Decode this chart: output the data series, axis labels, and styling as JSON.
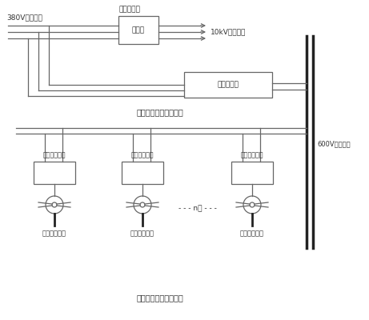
{
  "bg_color": "#ffffff",
  "line_color": "#666666",
  "dark_line": "#222222",
  "text_color": "#333333",
  "title": "风力发电节能减排系统",
  "label_380v": "380V输电线路",
  "label_user_transformer": "用户变压器",
  "label_transformer": "变压器",
  "label_10kv": "10kV输电线路",
  "label_inverter": "并网逆变器",
  "label_dc_group": "小型直流风力发电机群",
  "label_rect1": "三相整流管桥",
  "label_rect2": "三相整流管桥",
  "label_rect3": "三相整流管桥",
  "label_gen1": "风力发电机组",
  "label_gen2": "风力发电机组",
  "label_gen3": "风力发电机组",
  "label_600v": "600V直流母线",
  "label_n_units": "- - - n台 - - -"
}
